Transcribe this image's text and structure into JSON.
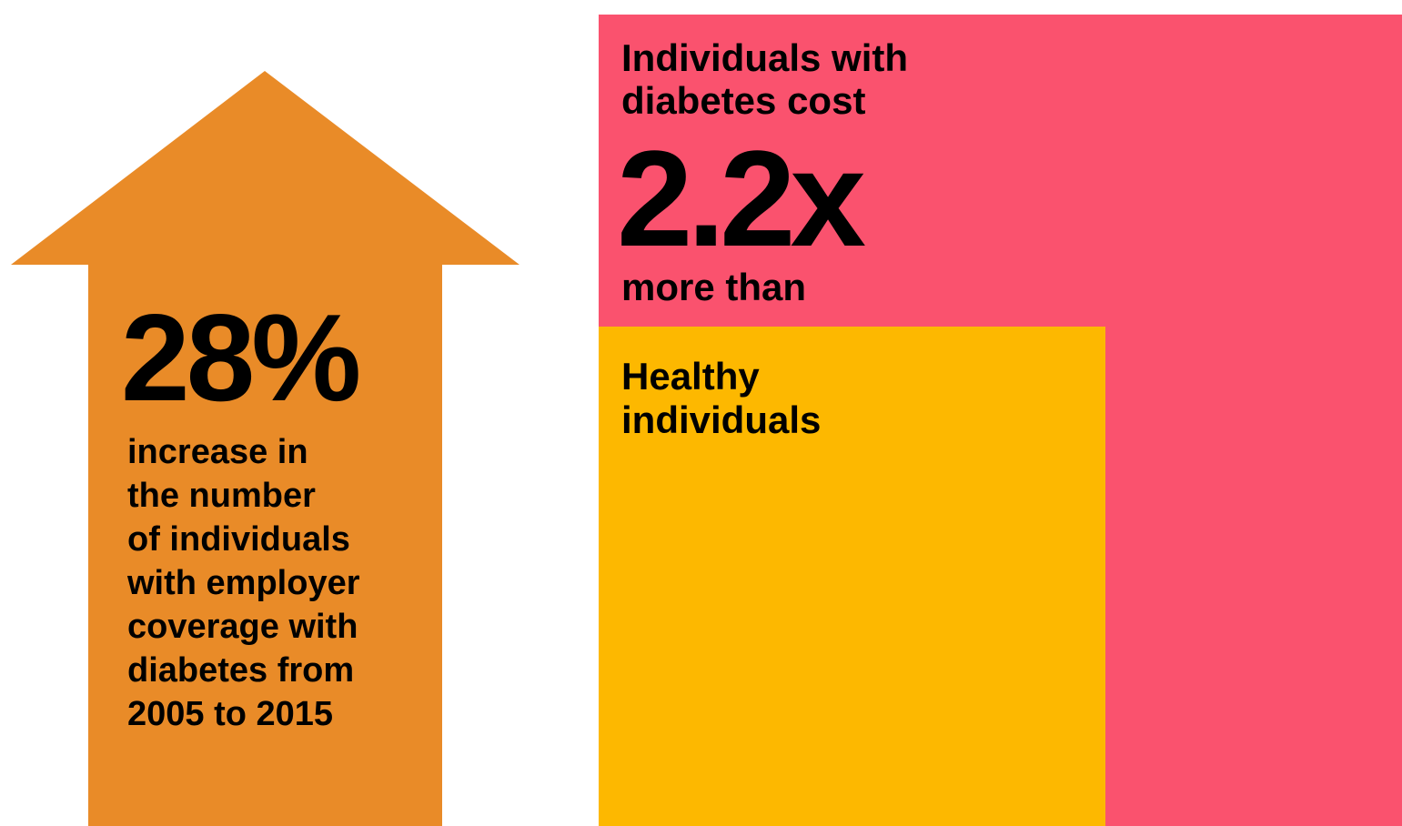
{
  "arrow_panel": {
    "stat": "28%",
    "description_lines": [
      "increase in",
      "the number",
      "of individuals",
      "with employer",
      "coverage with",
      "diabetes from",
      "2005 to 2015"
    ]
  },
  "cost_panel": {
    "heading_lines": [
      "Individuals with",
      "diabetes cost"
    ],
    "stat": "2.2x",
    "comparison": "more than",
    "healthy_lines": [
      "Healthy",
      "individuals"
    ]
  }
}
